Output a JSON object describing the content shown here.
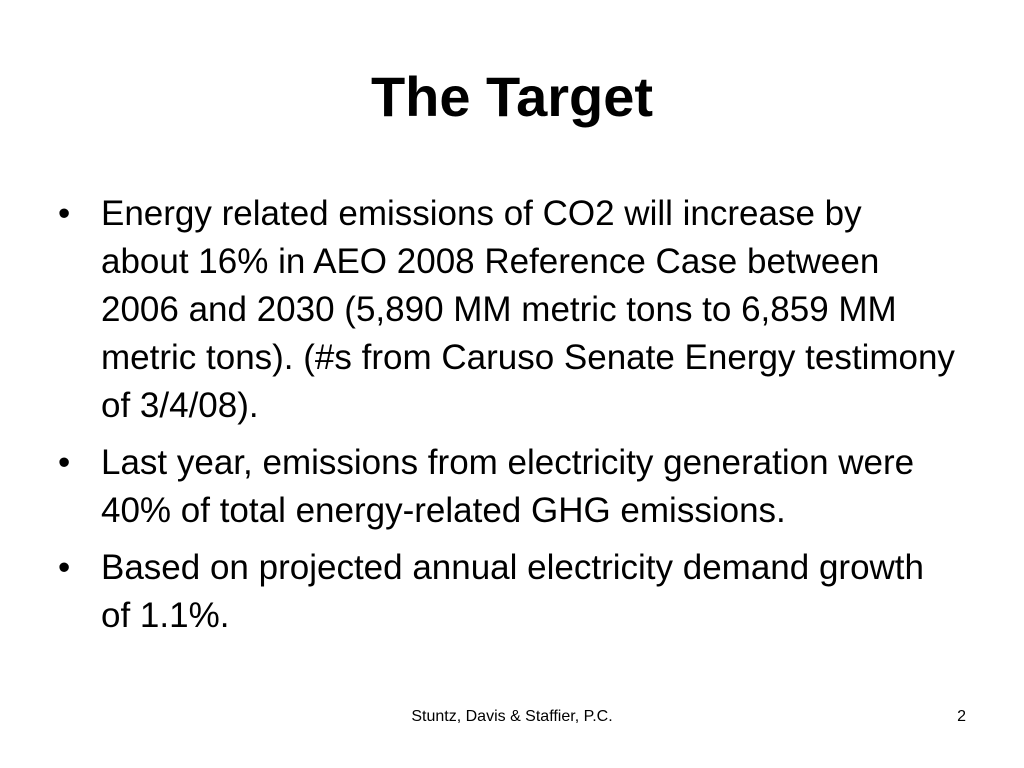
{
  "slide": {
    "title": "The Target",
    "bullet_symbol": "•",
    "bullets": [
      "Energy related emissions of CO2 will increase by about 16% in AEO 2008 Reference Case between 2006 and 2030 (5,890 MM metric tons to 6,859 MM metric tons). (#s from Caruso Senate Energy testimony of 3/4/08).",
      "Last year, emissions from electricity generation were 40% of total energy-related GHG emissions.",
      "Based on projected annual electricity demand growth of 1.1%."
    ],
    "footer": "Stuntz, Davis & Staffier, P.C.",
    "page_number": "2"
  }
}
